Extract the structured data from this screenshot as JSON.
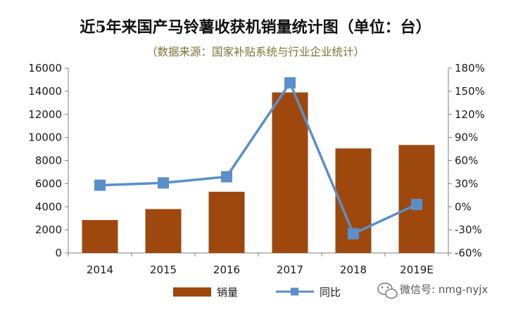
{
  "chart_data": {
    "type": "bar",
    "title": "近5年来国产马铃薯收获机销量统计图（单位：台）",
    "subtitle": "（数据来源：国家补贴系统与行业企业统计）",
    "categories": [
      "2014",
      "2015",
      "2016",
      "2017",
      "2018",
      "2019E"
    ],
    "series": [
      {
        "name": "销量",
        "type": "bar",
        "axis": "left",
        "color": "#9e480e",
        "values": [
          2850,
          3800,
          5300,
          13900,
          9050,
          9350
        ]
      },
      {
        "name": "同比",
        "type": "line",
        "axis": "right",
        "color": "#5b8fc9",
        "values": [
          28,
          31,
          39,
          161,
          -35,
          3
        ]
      }
    ],
    "y_left": {
      "min": 0,
      "max": 16000,
      "step": 2000,
      "ticks": [
        "0",
        "2000",
        "4000",
        "6000",
        "8000",
        "10000",
        "12000",
        "14000",
        "16000"
      ]
    },
    "y_right": {
      "min": -60,
      "max": 180,
      "step": 30,
      "ticks": [
        "-60%",
        "-30%",
        "0%",
        "30%",
        "60%",
        "90%",
        "120%",
        "150%",
        "180%"
      ]
    },
    "grid": false,
    "legend": "bottom"
  },
  "watermark": {
    "icon": "wechat-icon",
    "text": "微信号: nmg-nyjx"
  }
}
